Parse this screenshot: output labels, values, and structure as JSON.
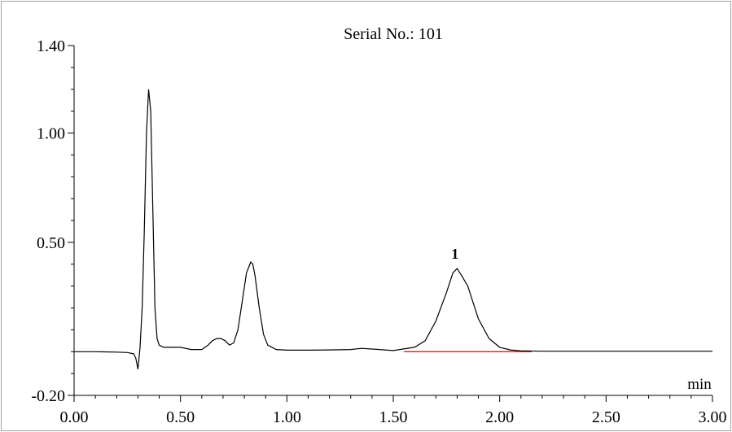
{
  "chart_data": {
    "type": "line",
    "title": "Serial No.: 101",
    "xlabel": "min",
    "ylabel": "",
    "xlim": [
      0.0,
      3.0
    ],
    "ylim": [
      -0.2,
      1.4
    ],
    "x_tick_labels": [
      "0.00",
      "0.50",
      "1.00",
      "1.50",
      "2.00",
      "2.50",
      "3.00"
    ],
    "x_tick_values": [
      0.0,
      0.5,
      1.0,
      1.5,
      2.0,
      2.5,
      3.0
    ],
    "y_tick_labels": [
      "1.40",
      "1.00",
      "0.50",
      "-0.20"
    ],
    "y_tick_values": [
      1.4,
      1.0,
      0.5,
      -0.2
    ],
    "grid": false,
    "colors": {
      "signal": "#000000",
      "baseline": "#e00000",
      "axis": "#000000"
    },
    "series": [
      {
        "x": [
          0.0,
          0.1,
          0.2,
          0.25,
          0.28,
          0.29,
          0.3,
          0.31,
          0.32,
          0.33,
          0.34,
          0.35,
          0.36,
          0.37,
          0.38,
          0.39,
          0.4,
          0.42,
          0.45,
          0.5,
          0.55,
          0.6,
          0.63,
          0.65,
          0.67,
          0.69,
          0.71,
          0.73,
          0.75,
          0.77,
          0.79,
          0.81,
          0.83,
          0.84,
          0.85,
          0.87,
          0.89,
          0.91,
          0.95,
          1.0,
          1.1,
          1.2,
          1.3,
          1.35,
          1.4,
          1.5,
          1.6,
          1.65,
          1.7,
          1.75,
          1.78,
          1.8,
          1.82,
          1.85,
          1.9,
          1.95,
          2.0,
          2.05,
          2.1,
          2.2,
          2.4,
          2.6,
          2.8,
          3.0
        ],
        "y": [
          0.0,
          0.0,
          -0.002,
          -0.004,
          -0.01,
          -0.03,
          -0.08,
          0.02,
          0.2,
          0.55,
          1.0,
          1.2,
          1.1,
          0.65,
          0.2,
          0.06,
          0.03,
          0.02,
          0.02,
          0.02,
          0.01,
          0.01,
          0.03,
          0.05,
          0.06,
          0.06,
          0.05,
          0.03,
          0.04,
          0.1,
          0.23,
          0.36,
          0.41,
          0.4,
          0.35,
          0.2,
          0.08,
          0.03,
          0.01,
          0.007,
          0.007,
          0.008,
          0.01,
          0.015,
          0.012,
          0.005,
          0.02,
          0.05,
          0.14,
          0.27,
          0.36,
          0.38,
          0.35,
          0.3,
          0.15,
          0.06,
          0.02,
          0.008,
          0.004,
          0.002,
          0.002,
          0.002,
          0.002,
          0.002
        ]
      }
    ],
    "baseline_segment": {
      "x": [
        1.55,
        2.15
      ],
      "y": [
        0.0,
        0.0
      ]
    },
    "annotations": [
      {
        "text": "1",
        "x": 1.79,
        "y": 0.38
      }
    ]
  }
}
